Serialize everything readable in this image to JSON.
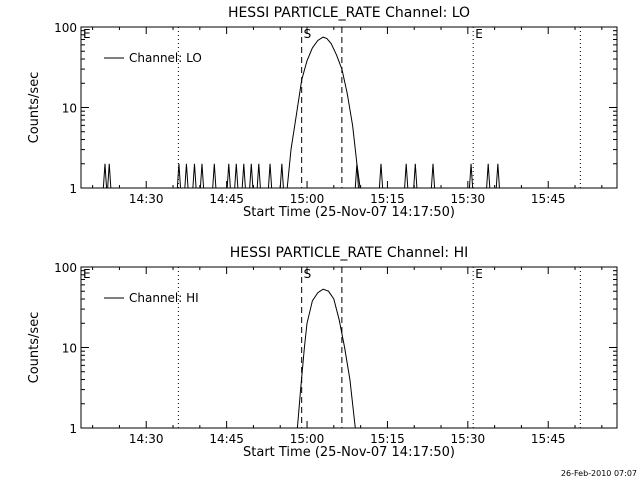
{
  "footer_timestamp": "26-Feb-2010 07:07",
  "chart_data": [
    {
      "type": "line",
      "title": "HESSI PARTICLE_RATE Channel: LO",
      "xlabel": "Start Time (25-Nov-07 14:17:50)",
      "ylabel": "Counts/sec",
      "x_ticks": [
        "14:30",
        "14:45",
        "15:00",
        "15:15",
        "15:30",
        "15:45"
      ],
      "x_tick_minutes": [
        30,
        45,
        60,
        75,
        90,
        105
      ],
      "xlim_minutes_after_14_00": [
        17.83,
        117.83
      ],
      "y_scale": "log",
      "ylim": [
        1,
        100
      ],
      "y_ticks": [
        "1",
        "10",
        "100"
      ],
      "legend": {
        "label": "Channel: LO",
        "position": "top-left"
      },
      "markers": [
        {
          "label": "E",
          "minute": 17.83,
          "style": "none"
        },
        {
          "label": "",
          "minute": 36.0,
          "style": "dotted"
        },
        {
          "label": "S",
          "minute": 59.0,
          "style": "dashed"
        },
        {
          "label": "",
          "minute": 66.5,
          "style": "dashed"
        },
        {
          "label": "E",
          "minute": 91.0,
          "style": "dotted"
        },
        {
          "label": "",
          "minute": 111.0,
          "style": "dotted"
        }
      ],
      "spikes": [
        22.3,
        23.1,
        36.1,
        37.5,
        39.0,
        40.4,
        42.7,
        45.4,
        46.8,
        48.2,
        49.6,
        51.0,
        53.1,
        55.3,
        69.3,
        73.8,
        78.5,
        80.2,
        83.5,
        90.6,
        93.8,
        95.6
      ],
      "flare": {
        "x": [
          56.3,
          57.0,
          58.0,
          59.0,
          60.0,
          61.0,
          62.0,
          63.0,
          63.7,
          64.5,
          65.5,
          66.5,
          67.5,
          68.5,
          69.3,
          69.9
        ],
        "y": [
          1,
          3,
          8,
          22,
          38,
          55,
          68,
          75,
          72,
          62,
          45,
          30,
          15,
          6,
          2,
          1
        ]
      }
    },
    {
      "type": "line",
      "title": "HESSI PARTICLE_RATE Channel: HI",
      "xlabel": "Start Time (25-Nov-07 14:17:50)",
      "ylabel": "Counts/sec",
      "x_ticks": [
        "14:30",
        "14:45",
        "15:00",
        "15:15",
        "15:30",
        "15:45"
      ],
      "x_tick_minutes": [
        30,
        45,
        60,
        75,
        90,
        105
      ],
      "xlim_minutes_after_14_00": [
        17.83,
        117.83
      ],
      "y_scale": "log",
      "ylim": [
        1,
        100
      ],
      "y_ticks": [
        "1",
        "10",
        "100"
      ],
      "legend": {
        "label": "Channel: HI",
        "position": "top-left"
      },
      "markers": [
        {
          "label": "E",
          "minute": 17.83,
          "style": "none"
        },
        {
          "label": "",
          "minute": 36.0,
          "style": "dotted"
        },
        {
          "label": "S",
          "minute": 59.0,
          "style": "dashed"
        },
        {
          "label": "",
          "minute": 66.5,
          "style": "dashed"
        },
        {
          "label": "E",
          "minute": 91.0,
          "style": "dotted"
        },
        {
          "label": "",
          "minute": 111.0,
          "style": "dotted"
        }
      ],
      "spikes": [],
      "flare": {
        "x": [
          58.2,
          58.8,
          59.5,
          60.0,
          61.0,
          62.0,
          63.0,
          64.0,
          65.0,
          66.0,
          67.0,
          68.0,
          68.5,
          69.0
        ],
        "y": [
          1,
          3,
          10,
          20,
          38,
          48,
          53,
          50,
          40,
          22,
          10,
          4,
          2,
          1
        ]
      }
    }
  ]
}
